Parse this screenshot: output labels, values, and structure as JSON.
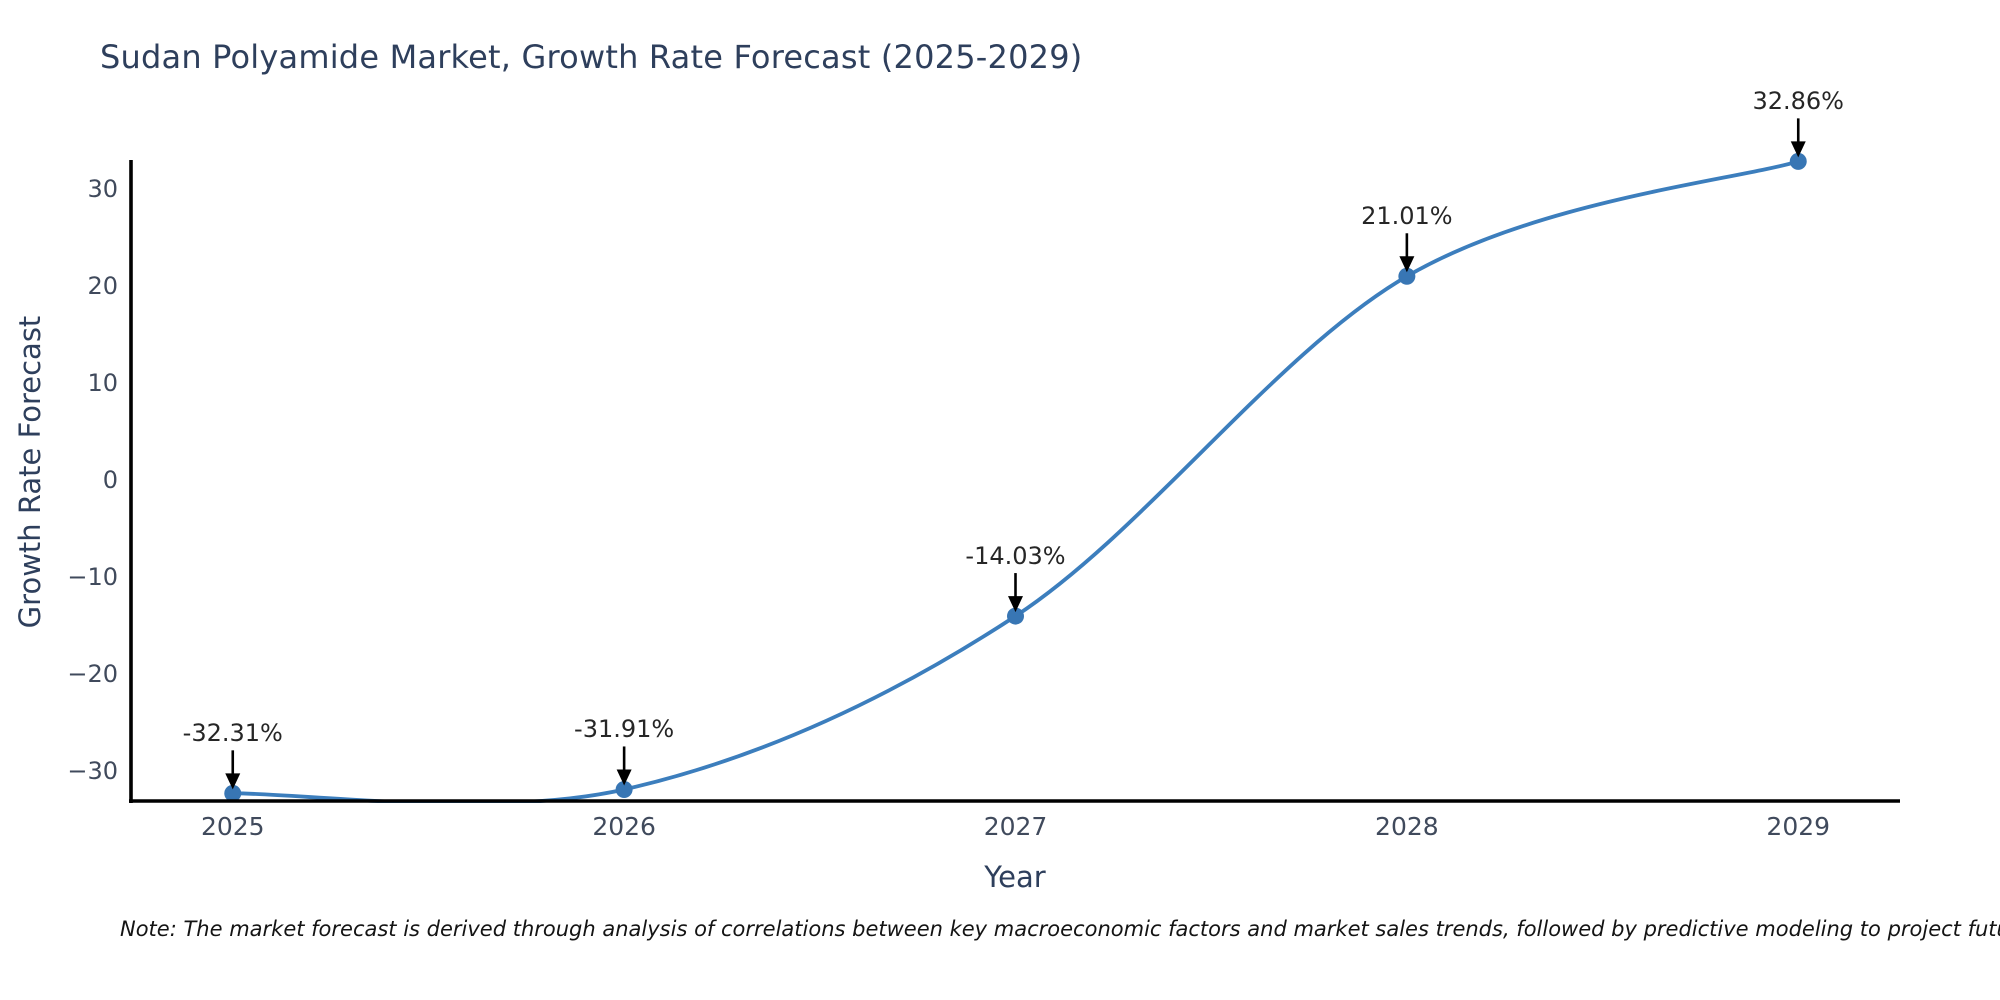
{
  "figure": {
    "title": "Sudan Polyamide Market, Growth Rate Forecast (2025-2029)",
    "xlabel": "Year",
    "ylabel": "Growth Rate Forecast",
    "note": "Note: The market forecast is derived through analysis of correlations between key macroeconomic factors and market sales trends, followed by predictive modeling to project future sales"
  },
  "chart_data": {
    "type": "line",
    "title": "Sudan Polyamide Market, Growth Rate Forecast (2025-2029)",
    "xlabel": "Year",
    "ylabel": "Growth Rate Forecast",
    "x": [
      2025,
      2026,
      2027,
      2028,
      2029
    ],
    "values": [
      -32.31,
      -31.91,
      -14.03,
      21.01,
      32.86
    ],
    "point_labels": [
      "-32.31%",
      "-31.91%",
      "-14.03%",
      "21.01%",
      "32.86%"
    ],
    "x_tick_labels": [
      "2025",
      "2026",
      "2027",
      "2028",
      "2029"
    ],
    "y_ticks": [
      -30,
      -20,
      -10,
      0,
      10,
      20,
      30
    ],
    "y_tick_labels": [
      "−30",
      "−20",
      "−10",
      "0",
      "10",
      "20",
      "30"
    ],
    "xlim": [
      2024.74,
      2029.26
    ],
    "ylim": [
      -33.1,
      33.0
    ],
    "grid": false,
    "legend_position": "none",
    "line_shape": "spline",
    "line_color": "#3c7ebd",
    "marker_color": "#3876b4",
    "axis_color": "#000000",
    "annotation_arrow_color": "#000000"
  }
}
